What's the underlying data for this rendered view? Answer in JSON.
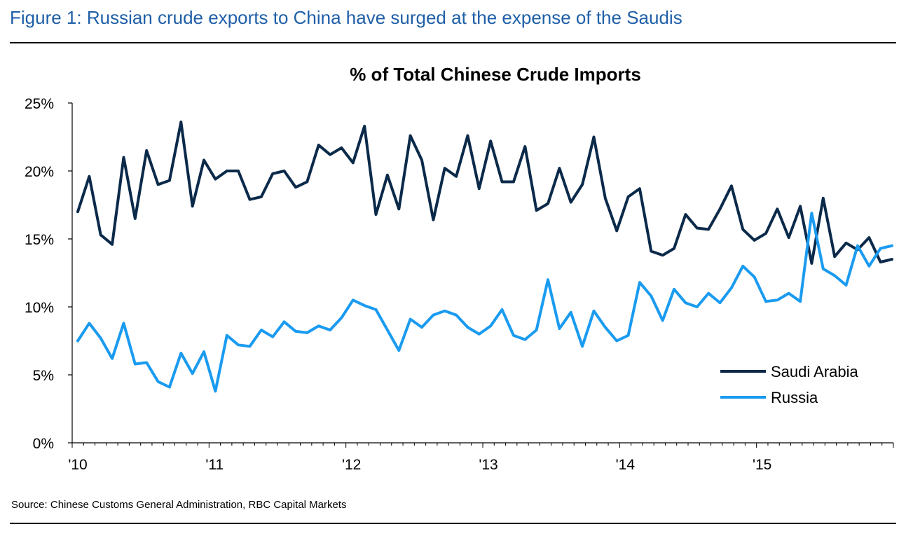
{
  "figure_title": "Figure 1: Russian crude exports to China have surged at the expense of the Saudis",
  "source": "Source: Chinese Customs General Administration, RBC Capital Markets",
  "colors": {
    "title": "#1f5fa8",
    "saudi": "#0b2a4a",
    "russia": "#1a9bf0"
  },
  "chart_data": {
    "type": "line",
    "title": "% of Total Chinese Crude Imports",
    "xlabel": "",
    "ylabel": "",
    "x_tick_labels": [
      "'10",
      "'11",
      "'12",
      "'13",
      "'14",
      "'15"
    ],
    "y_tick_labels": [
      "0%",
      "5%",
      "10%",
      "15%",
      "20%",
      "25%"
    ],
    "ylim": [
      0,
      25
    ],
    "legend_position": "lower-right",
    "grid": false,
    "x_start": "2010-01",
    "frequency": "monthly",
    "series": [
      {
        "name": "Saudi Arabia",
        "color": "#0b2a4a",
        "values": [
          17.0,
          19.6,
          15.3,
          14.6,
          21.0,
          16.5,
          21.5,
          19.0,
          19.3,
          23.6,
          17.4,
          20.8,
          19.4,
          20.0,
          20.0,
          17.9,
          18.1,
          19.8,
          20.0,
          18.8,
          19.2,
          21.9,
          21.2,
          21.7,
          20.6,
          23.3,
          16.8,
          19.7,
          17.2,
          22.6,
          20.8,
          16.4,
          20.2,
          19.6,
          22.6,
          18.7,
          22.2,
          19.2,
          19.2,
          21.8,
          17.1,
          17.6,
          20.2,
          17.7,
          19.0,
          22.5,
          18.0,
          15.6,
          18.1,
          18.7,
          14.1,
          13.8,
          14.3,
          16.8,
          15.8,
          15.7,
          17.2,
          18.9,
          15.7,
          14.9,
          15.4,
          17.2,
          15.1,
          17.4,
          13.2,
          18.0,
          13.7,
          14.7,
          14.2,
          15.1,
          13.3,
          13.5
        ]
      },
      {
        "name": "Russia",
        "color": "#1a9bf0",
        "values": [
          7.5,
          8.8,
          7.7,
          6.2,
          8.8,
          5.8,
          5.9,
          4.5,
          4.1,
          6.6,
          5.1,
          6.7,
          3.8,
          7.9,
          7.2,
          7.1,
          8.3,
          7.8,
          8.9,
          8.2,
          8.1,
          8.6,
          8.3,
          9.2,
          10.5,
          10.1,
          9.8,
          8.3,
          6.8,
          9.1,
          8.5,
          9.4,
          9.7,
          9.4,
          8.5,
          8.0,
          8.6,
          9.8,
          7.9,
          7.6,
          8.3,
          12.0,
          8.4,
          9.6,
          7.1,
          9.7,
          8.5,
          7.5,
          7.9,
          11.8,
          10.8,
          9.0,
          11.3,
          10.3,
          10.0,
          11.0,
          10.3,
          11.4,
          13.0,
          12.2,
          10.4,
          10.5,
          11.0,
          10.4,
          16.9,
          12.8,
          12.3,
          11.6,
          14.5,
          13.0,
          14.3,
          14.5
        ]
      }
    ]
  }
}
